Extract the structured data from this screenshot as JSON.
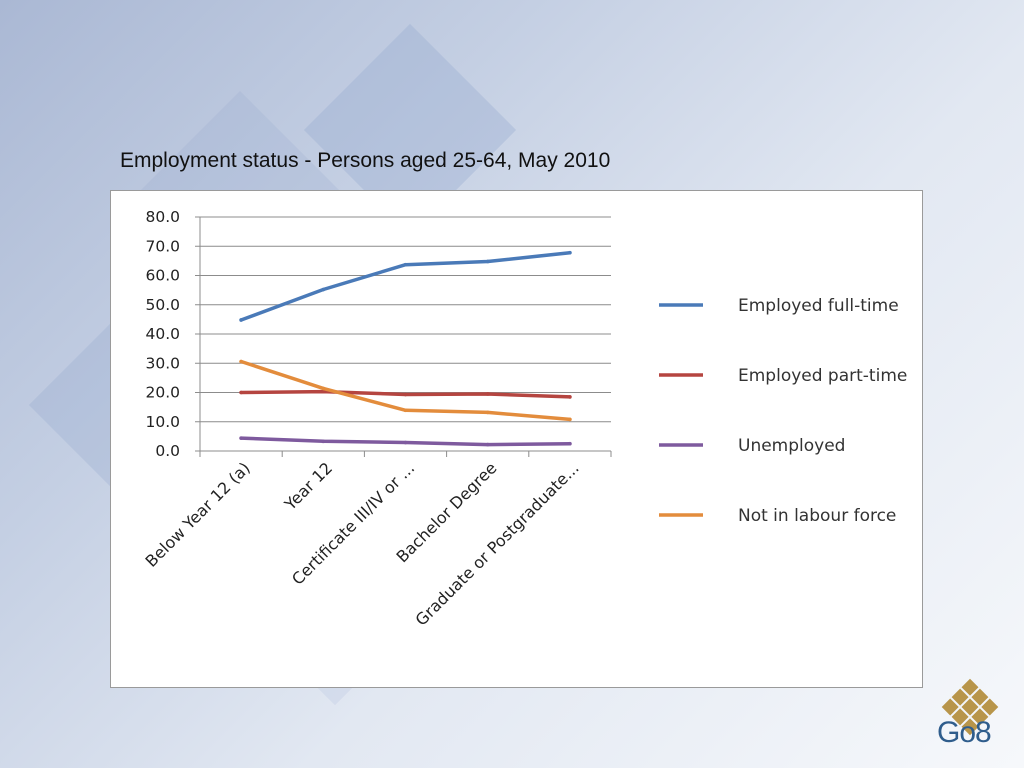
{
  "slide": {
    "title": "Employment status - Persons aged 25-64, May 2010",
    "logo_text": "Go8"
  },
  "colors": {
    "logo_diamond": "#b8954a",
    "logo_text": "#2f5d8c"
  },
  "chart_data": {
    "type": "line",
    "title": "",
    "xlabel": "",
    "ylabel": "",
    "categories": [
      "Below Year 12 (a)",
      "Year 12",
      "Certificate III/IV or ...",
      "Bachelor Degree",
      "Graduate or Postgraduate..."
    ],
    "ylim": [
      0,
      80
    ],
    "yticks": [
      0,
      10,
      20,
      30,
      40,
      50,
      60,
      70,
      80
    ],
    "ytick_labels": [
      "0.0",
      "10.0",
      "20.0",
      "30.0",
      "40.0",
      "50.0",
      "60.0",
      "70.0",
      "80.0"
    ],
    "grid": true,
    "legend_position": "right",
    "series": [
      {
        "name": "Employed full-time",
        "color": "#4a7ab8",
        "values": [
          44.8,
          55.2,
          63.7,
          64.8,
          67.8
        ]
      },
      {
        "name": "Employed part-time",
        "color": "#b54540",
        "values": [
          20.0,
          20.3,
          19.3,
          19.5,
          18.5
        ]
      },
      {
        "name": "Unemployed",
        "color": "#7e5a9e",
        "values": [
          4.4,
          3.3,
          2.9,
          2.2,
          2.5
        ]
      },
      {
        "name": "Not in labour force",
        "color": "#e38c3c",
        "values": [
          30.6,
          21.4,
          13.9,
          13.2,
          10.8
        ]
      }
    ]
  }
}
